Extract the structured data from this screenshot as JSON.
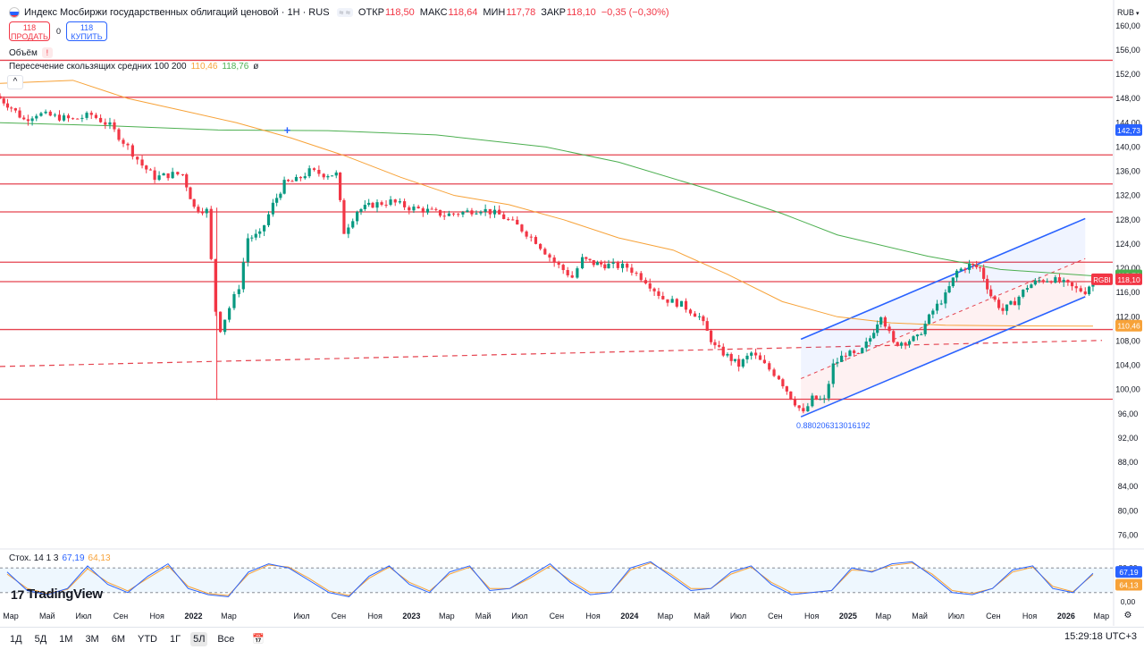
{
  "header": {
    "title": "Индекс Мосбиржи государственных облигаций ценовой · 1H · RUS",
    "eye_label": "≈ ≈",
    "open_label": "ОТКР",
    "open": "118,50",
    "high_label": "МАКС",
    "high": "118,64",
    "low_label": "МИН",
    "low": "117,78",
    "close_label": "ЗАКР",
    "close": "118,10",
    "change": "−0,35 (−0,30%)"
  },
  "trade": {
    "sell_price": "118",
    "sell_label": "ПРОДАТЬ",
    "spread": "0",
    "buy_price": "118",
    "buy_label": "КУПИТЬ"
  },
  "volume_label": "Объём",
  "ma": {
    "name": "Пересечение скользящих средних 100 200",
    "v1": "110,46",
    "v2": "118,76",
    "v3": "ø"
  },
  "stoch": {
    "name": "Стох. 14 1 3",
    "k": "67,19",
    "d": "64,13"
  },
  "logo": "TradingView",
  "currency": "RUB",
  "timeframes": [
    "1Д",
    "5Д",
    "1М",
    "3М",
    "6М",
    "YTD",
    "1Г",
    "5Л",
    "Все"
  ],
  "active_timeframe": "5Л",
  "clock": "15:29:18 UTC+3",
  "colors": {
    "up": "#089981",
    "down": "#f23645",
    "ma100": "#f7a238",
    "ma200": "#4caf50",
    "line": "#2962ff",
    "level": "#e5434f"
  },
  "chart_data": [
    {
      "type": "candlestick",
      "y_ticks": [
        "160,00",
        "156,00",
        "152,00",
        "148,00",
        "144,00",
        "140,00",
        "136,00",
        "132,00",
        "128,00",
        "124,00",
        "120,00",
        "116,00",
        "112,00",
        "108,00",
        "104,00",
        "100,00",
        "96,00",
        "92,00",
        "88,00",
        "84,00",
        "80,00",
        "76,00"
      ],
      "ylim": [
        74,
        161
      ],
      "x_ticks": [
        "Мар",
        "Май",
        "Июл",
        "Сен",
        "Ноя",
        "2022",
        "Мар",
        "Июл",
        "Сен",
        "Ноя",
        "2023",
        "Мар",
        "Май",
        "Июл",
        "Сен",
        "Ноя",
        "2024",
        "Мар",
        "Май",
        "Июл",
        "Сен",
        "Ноя",
        "2025",
        "Мар",
        "Май",
        "Июл",
        "Сен",
        "Ноя",
        "2026",
        "Мар"
      ],
      "x_tick_dates": [
        "2021-03-01",
        "2021-05-01",
        "2021-07-01",
        "2021-09-01",
        "2021-11-01",
        "2022-01-01",
        "2022-03-01",
        "2022-07-01",
        "2022-09-01",
        "2022-11-01",
        "2023-01-01",
        "2023-03-01",
        "2023-05-01",
        "2023-07-01",
        "2023-09-01",
        "2023-11-01",
        "2024-01-01",
        "2024-03-01",
        "2024-05-01",
        "2024-07-01",
        "2024-09-01",
        "2024-11-01",
        "2025-01-01",
        "2025-03-01",
        "2025-05-01",
        "2025-07-01",
        "2025-09-01",
        "2025-11-01",
        "2026-01-01",
        "2026-03-01"
      ],
      "bold_ticks": [
        "2022",
        "2023",
        "2024",
        "2025",
        "2026"
      ],
      "x_range": [
        "2021-03-01",
        "2026-04-07"
      ],
      "horizontal_levels": [
        154.3,
        148.2,
        138.7,
        133.9,
        129.3,
        121.0,
        117.8,
        109.9,
        98.4
      ],
      "trend_dashed": {
        "from": [
          "2021-03-01",
          103.8
        ],
        "to": [
          "2026-03-20",
          108.1
        ]
      },
      "channel": {
        "lower": {
          "from": [
            "2024-11-01",
            95.5
          ],
          "to": [
            "2026-02-20",
            115.3
          ]
        },
        "upper": {
          "from": [
            "2024-11-01",
            108.3
          ],
          "to": [
            "2026-02-20",
            128.2
          ]
        },
        "mid_dashed": {
          "from": [
            "2024-11-01",
            101.8
          ],
          "to": [
            "2026-02-20",
            121.6
          ]
        },
        "label": "0.880206313016192"
      },
      "closes_weekly_approx": [
        [
          "2021-03-01",
          148.0
        ],
        [
          "2021-03-20",
          146.5
        ],
        [
          "2021-04-10",
          144.5
        ],
        [
          "2021-05-01",
          145.5
        ],
        [
          "2021-06-01",
          145.0
        ],
        [
          "2021-07-01",
          144.5
        ],
        [
          "2021-08-01",
          145.3
        ],
        [
          "2021-09-01",
          143.5
        ],
        [
          "2021-10-01",
          140.0
        ],
        [
          "2021-10-25",
          137.0
        ],
        [
          "2021-11-15",
          135.0
        ],
        [
          "2021-12-15",
          135.5
        ],
        [
          "2022-01-01",
          135.5
        ],
        [
          "2022-01-20",
          130.0
        ],
        [
          "2022-02-10",
          129.5
        ],
        [
          "2022-02-25",
          113.0
        ],
        [
          "2022-03-05",
          110.0
        ],
        [
          "2022-03-20",
          113.5
        ],
        [
          "2022-04-05",
          117.0
        ],
        [
          "2022-04-20",
          125.0
        ],
        [
          "2022-05-10",
          125.5
        ],
        [
          "2022-06-01",
          130.5
        ],
        [
          "2022-06-20",
          134.0
        ],
        [
          "2022-07-10",
          134.5
        ],
        [
          "2022-08-01",
          136.0
        ],
        [
          "2022-08-25",
          135.5
        ],
        [
          "2022-09-15",
          135.5
        ],
        [
          "2022-09-28",
          126.0
        ],
        [
          "2022-10-20",
          129.5
        ],
        [
          "2022-11-15",
          130.5
        ],
        [
          "2022-12-15",
          131.0
        ],
        [
          "2023-01-15",
          130.0
        ],
        [
          "2023-02-15",
          129.5
        ],
        [
          "2023-03-15",
          128.8
        ],
        [
          "2023-04-15",
          129.2
        ],
        [
          "2023-05-15",
          129.8
        ],
        [
          "2023-06-15",
          128.8
        ],
        [
          "2023-07-15",
          127.0
        ],
        [
          "2023-08-15",
          124.5
        ],
        [
          "2023-09-15",
          121.0
        ],
        [
          "2023-10-15",
          118.5
        ],
        [
          "2023-11-01",
          121.5
        ],
        [
          "2023-11-20",
          120.8
        ],
        [
          "2023-12-15",
          120.5
        ],
        [
          "2024-01-15",
          120.2
        ],
        [
          "2024-02-15",
          118.0
        ],
        [
          "2024-03-15",
          115.0
        ],
        [
          "2024-04-15",
          114.0
        ],
        [
          "2024-05-15",
          112.0
        ],
        [
          "2024-06-10",
          107.0
        ],
        [
          "2024-07-01",
          105.5
        ],
        [
          "2024-07-20",
          104.0
        ],
        [
          "2024-08-10",
          106.0
        ],
        [
          "2024-09-01",
          104.0
        ],
        [
          "2024-09-25",
          102.0
        ],
        [
          "2024-10-15",
          98.8
        ],
        [
          "2024-11-05",
          96.0
        ],
        [
          "2024-11-20",
          98.5
        ],
        [
          "2024-12-10",
          98.2
        ],
        [
          "2024-12-25",
          104.0
        ],
        [
          "2025-01-15",
          106.0
        ],
        [
          "2025-02-05",
          105.5
        ],
        [
          "2025-02-25",
          108.5
        ],
        [
          "2025-03-15",
          112.5
        ],
        [
          "2025-04-05",
          107.5
        ],
        [
          "2025-04-25",
          108.0
        ],
        [
          "2025-05-15",
          108.5
        ],
        [
          "2025-06-10",
          113.0
        ],
        [
          "2025-07-01",
          115.5
        ],
        [
          "2025-07-20",
          119.5
        ],
        [
          "2025-08-10",
          120.5
        ],
        [
          "2025-08-28",
          120.0
        ],
        [
          "2025-09-15",
          115.5
        ],
        [
          "2025-10-05",
          113.0
        ],
        [
          "2025-10-25",
          114.5
        ],
        [
          "2025-11-15",
          117.0
        ],
        [
          "2025-12-05",
          118.0
        ],
        [
          "2025-12-25",
          118.2
        ],
        [
          "2026-01-15",
          117.5
        ],
        [
          "2026-02-05",
          116.5
        ],
        [
          "2026-02-20",
          116.2
        ],
        [
          "2026-03-05",
          118.1
        ]
      ],
      "ma100_approx": [
        [
          "2021-03-01",
          150.5
        ],
        [
          "2021-07-01",
          151.0
        ],
        [
          "2021-10-01",
          148.0
        ],
        [
          "2022-01-01",
          146.0
        ],
        [
          "2022-04-01",
          144.0
        ],
        [
          "2022-07-01",
          141.5
        ],
        [
          "2022-10-01",
          138.5
        ],
        [
          "2023-01-01",
          135.0
        ],
        [
          "2023-04-01",
          132.0
        ],
        [
          "2023-07-01",
          130.5
        ],
        [
          "2023-10-01",
          128.0
        ],
        [
          "2024-01-01",
          125.0
        ],
        [
          "2024-04-01",
          123.0
        ],
        [
          "2024-07-01",
          119.0
        ],
        [
          "2024-10-01",
          114.5
        ],
        [
          "2025-01-01",
          112.0
        ],
        [
          "2025-04-01",
          111.0
        ],
        [
          "2025-07-01",
          110.6
        ],
        [
          "2025-11-01",
          110.5
        ],
        [
          "2026-03-05",
          110.46
        ]
      ],
      "ma200_approx": [
        [
          "2021-03-01",
          144.0
        ],
        [
          "2021-09-01",
          143.5
        ],
        [
          "2022-03-01",
          142.8
        ],
        [
          "2022-09-01",
          142.7
        ],
        [
          "2023-03-01",
          142.0
        ],
        [
          "2023-09-01",
          140.0
        ],
        [
          "2024-01-01",
          137.5
        ],
        [
          "2024-06-01",
          133.0
        ],
        [
          "2024-10-01",
          129.0
        ],
        [
          "2025-01-01",
          125.5
        ],
        [
          "2025-06-01",
          122.0
        ],
        [
          "2025-10-01",
          119.8
        ],
        [
          "2026-03-05",
          118.76
        ]
      ],
      "cross_marker": [
        "2022-06-25",
        142.7
      ],
      "price_labels": [
        {
          "text": "142,73",
          "value": 142.73,
          "color": "#2962ff"
        },
        {
          "text": "118,76",
          "value": 118.76,
          "color": "#4caf50"
        },
        {
          "text": "118,10",
          "value": 118.1,
          "color": "#f23645"
        },
        {
          "text": "110,46",
          "value": 110.46,
          "color": "#f7a238"
        }
      ],
      "symbol_tag": "RGBI"
    },
    {
      "type": "line",
      "name": "Стох. 14 1 3",
      "y_ticks": [
        "80,00",
        "0,00"
      ],
      "bands": [
        80,
        20
      ],
      "series": [
        {
          "name": "%K",
          "color": "#2962ff",
          "values_approx": [
            70,
            25,
            15,
            30,
            85,
            40,
            20,
            60,
            90,
            30,
            15,
            10,
            70,
            90,
            80,
            50,
            20,
            10,
            60,
            85,
            40,
            20,
            70,
            85,
            25,
            30,
            60,
            90,
            45,
            15,
            20,
            80,
            95,
            60,
            25,
            30,
            70,
            85,
            40,
            15,
            20,
            25,
            80,
            70,
            90,
            95,
            60,
            20,
            15,
            30,
            75,
            85,
            30,
            20,
            67
          ]
        },
        {
          "name": "%D",
          "color": "#f7a238",
          "values_approx": [
            65,
            30,
            18,
            28,
            78,
            45,
            24,
            55,
            85,
            35,
            18,
            13,
            65,
            87,
            82,
            55,
            24,
            13,
            55,
            82,
            45,
            24,
            65,
            82,
            30,
            30,
            55,
            85,
            50,
            20,
            20,
            75,
            92,
            65,
            30,
            30,
            65,
            82,
            45,
            20,
            20,
            25,
            75,
            72,
            86,
            92,
            65,
            25,
            18,
            30,
            70,
            82,
            35,
            22,
            64
          ]
        }
      ]
    }
  ]
}
